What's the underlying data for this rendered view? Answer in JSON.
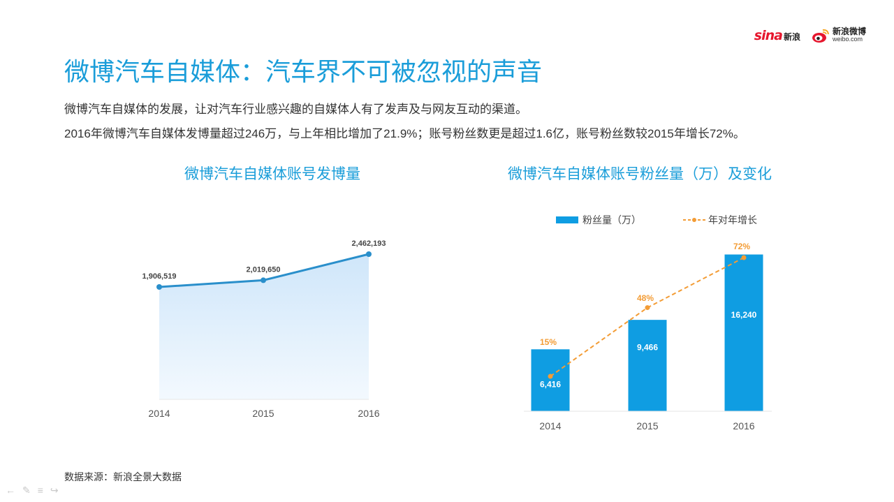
{
  "header": {
    "sina_logo": "sina",
    "sina_cn": "新浪",
    "weibo_cn": "新浪微博",
    "weibo_en": "weibo.com",
    "weibo_icon": "weibo-eye-icon",
    "sina_color": "#e6162d"
  },
  "title": "微博汽车自媒体：汽车界不可被忽视的声音",
  "desc": {
    "line1": "微博汽车自媒体的发展，让对汽车行业感兴趣的自媒体人有了发声及与网友互动的渠道。",
    "line2": "2016年微博汽车自媒体发博量超过246万，与上年相比增加了21.9%；账号粉丝数更是超过1.6亿，账号粉丝数较2015年增长72%。"
  },
  "source": "数据来源：新浪全景大数据",
  "nav_icons": [
    "back-arrow-icon",
    "pen-icon",
    "menu-icon",
    "forward-arrow-icon"
  ],
  "chart_data": [
    {
      "type": "area",
      "title": "微博汽车自媒体账号发博量",
      "x": [
        "2014",
        "2015",
        "2016"
      ],
      "values": [
        1906519,
        2019650,
        2462193
      ],
      "data_labels": [
        "1,906,519",
        "2,019,650",
        "2,462,193"
      ],
      "line_color": "#2a8fcb",
      "fill_color": "#cfe6fa",
      "grid": false,
      "legend": "none"
    },
    {
      "type": "bar",
      "title": "微博汽车自媒体账号粉丝量（万）及变化",
      "categories": [
        "2014",
        "2015",
        "2016"
      ],
      "legend": "top",
      "ylim": [
        0,
        17000
      ],
      "series": [
        {
          "name": "粉丝量（万）",
          "type": "bar",
          "values": [
            6416,
            9466,
            16240
          ],
          "data_labels": [
            "6,416",
            "9,466",
            "16,240"
          ],
          "color": "#0f9de2"
        },
        {
          "name": "年对年增长",
          "type": "line",
          "values": [
            15,
            48,
            72
          ],
          "data_labels": [
            "15%",
            "48%",
            "72%"
          ],
          "color": "#f39c35",
          "style": "dashed"
        }
      ]
    }
  ]
}
